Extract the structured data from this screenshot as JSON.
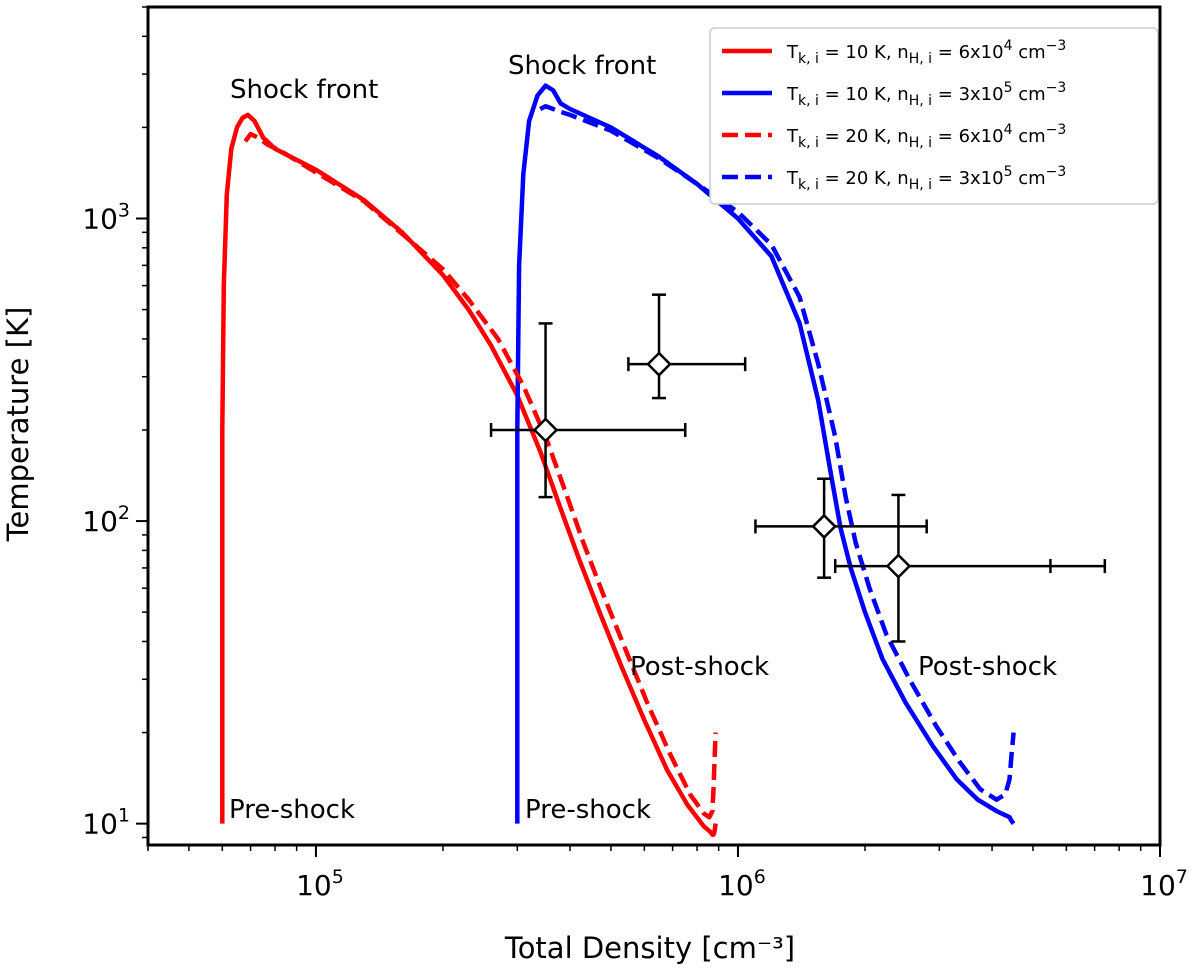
{
  "chart_data": {
    "type": "line",
    "xlabel": "Total Density [cm⁻³]",
    "ylabel": "Temperature [K]",
    "xscale": "log",
    "yscale": "log",
    "xlim": [
      40000,
      10000000
    ],
    "ylim": [
      8.5,
      5000
    ],
    "x_ticks": [
      {
        "value": 100000,
        "base": "10",
        "exp": "5"
      },
      {
        "value": 1000000,
        "base": "10",
        "exp": "6"
      },
      {
        "value": 10000000,
        "base": "10",
        "exp": "7"
      }
    ],
    "y_ticks": [
      {
        "value": 10,
        "base": "10",
        "exp": "1"
      },
      {
        "value": 100,
        "base": "10",
        "exp": "2"
      },
      {
        "value": 1000,
        "base": "10",
        "exp": "3"
      }
    ],
    "legend_position": "top-right",
    "series": [
      {
        "name": "T_k,i = 10 K, n_H,i = 6x10^4 cm^-3",
        "legend": {
          "pre": "T",
          "sub1": "k, i",
          "mid": " = 10 K, n",
          "sub2": "H, i",
          "mid2": " = 6x10",
          "sup1": "4",
          "post": " cm",
          "sup2": "−3"
        },
        "color": "#ff0000",
        "dash": false,
        "x": [
          60000,
          60000,
          60500,
          61500,
          63000,
          65000,
          67000,
          69000,
          71500,
          75000,
          80000,
          100000,
          130000,
          160000,
          200000,
          230000,
          260000,
          300000,
          340000,
          380000,
          420000,
          470000,
          530000,
          600000,
          680000,
          760000,
          830000,
          860000,
          870000,
          875000,
          880000,
          885000
        ],
        "y": [
          10,
          200,
          600,
          1200,
          1700,
          2000,
          2150,
          2200,
          2100,
          1850,
          1700,
          1450,
          1150,
          900,
          650,
          500,
          380,
          260,
          170,
          110,
          75,
          50,
          33,
          22,
          15,
          11.5,
          9.8,
          9.4,
          9.2,
          9.2,
          9.4,
          10
        ]
      },
      {
        "name": "T_k,i = 10 K, n_H,i = 3x10^5 cm^-3",
        "legend": {
          "pre": "T",
          "sub1": "k, i",
          "mid": " = 10 K, n",
          "sub2": "H, i",
          "mid2": " = 3x10",
          "sup1": "5",
          "post": " cm",
          "sup2": "−3"
        },
        "color": "#0000ff",
        "dash": false,
        "x": [
          300000,
          300000,
          303000,
          310000,
          320000,
          335000,
          350000,
          365000,
          380000,
          400000,
          500000,
          650000,
          800000,
          1000000,
          1200000,
          1400000,
          1550000,
          1650000,
          1750000,
          1850000,
          2000000,
          2200000,
          2500000,
          2900000,
          3300000,
          3700000,
          4100000,
          4400000,
          4450000,
          4500000
        ],
        "y": [
          10,
          200,
          700,
          1400,
          2100,
          2550,
          2750,
          2650,
          2400,
          2300,
          2000,
          1600,
          1300,
          1000,
          750,
          450,
          250,
          150,
          95,
          70,
          50,
          35,
          25,
          18,
          14,
          12,
          11,
          10.5,
          10.2,
          10
        ]
      },
      {
        "name": "T_k,i = 20 K, n_H,i = 6x10^4 cm^-3",
        "legend": {
          "pre": "T",
          "sub1": "k, i",
          "mid": " = 20 K, n",
          "sub2": "H, i",
          "mid2": " = 6x10",
          "sup1": "4",
          "post": " cm",
          "sup2": "−3"
        },
        "color": "#ff0000",
        "dash": true,
        "x": [
          68000,
          70000,
          73000,
          77000,
          82000,
          100000,
          130000,
          160000,
          200000,
          230000,
          270000,
          310000,
          350000,
          390000,
          430000,
          480000,
          540000,
          610000,
          690000,
          770000,
          830000,
          855000,
          870000,
          875000,
          880000,
          885000
        ],
        "y": [
          1800,
          1900,
          1850,
          1750,
          1680,
          1420,
          1140,
          890,
          680,
          540,
          400,
          280,
          190,
          125,
          85,
          57,
          38,
          25,
          17,
          12.5,
          10.8,
          10.5,
          11,
          13,
          16,
          20
        ]
      },
      {
        "name": "T_k,i = 20 K, n_H,i = 3x10^5 cm^-3",
        "legend": {
          "pre": "T",
          "sub1": "k, i",
          "mid": " = 20 K, n",
          "sub2": "H, i",
          "mid2": " = 3x10",
          "sup1": "5",
          "post": " cm",
          "sup2": "−3"
        },
        "color": "#0000ff",
        "dash": true,
        "x": [
          340000,
          350000,
          365000,
          380000,
          400000,
          500000,
          650000,
          800000,
          1000000,
          1200000,
          1400000,
          1550000,
          1700000,
          1800000,
          1900000,
          2050000,
          2250000,
          2550000,
          2950000,
          3350000,
          3750000,
          4100000,
          4300000,
          4400000,
          4450000,
          4500000
        ],
        "y": [
          2300,
          2350,
          2300,
          2250,
          2200,
          1950,
          1580,
          1300,
          1050,
          820,
          550,
          330,
          190,
          120,
          85,
          60,
          42,
          30,
          21,
          16,
          13,
          12,
          12.5,
          14,
          17,
          20
        ]
      }
    ],
    "observations": [
      {
        "x": 350000,
        "y": 200,
        "xerr": [
          260000,
          750000
        ],
        "yerr": [
          120,
          450
        ]
      },
      {
        "x": 650000,
        "y": 330,
        "xerr": [
          550000,
          1040000
        ],
        "yerr": [
          255,
          560
        ]
      },
      {
        "x": 1600000,
        "y": 96,
        "xerr": [
          1100000,
          2800000
        ],
        "yerr": [
          65,
          138
        ]
      },
      {
        "x": 2400000,
        "y": 71,
        "xerr": [
          1700000,
          7400000
        ],
        "yerr": [
          40,
          122
        ],
        "extra_xticks": [
          5500000
        ]
      }
    ],
    "annotations": {
      "shock_front_1": "Shock front",
      "shock_front_2": "Shock front",
      "pre_shock_1": "Pre-shock",
      "pre_shock_2": "Pre-shock",
      "post_shock_1": "Post-shock",
      "post_shock_2": "Post-shock"
    }
  }
}
